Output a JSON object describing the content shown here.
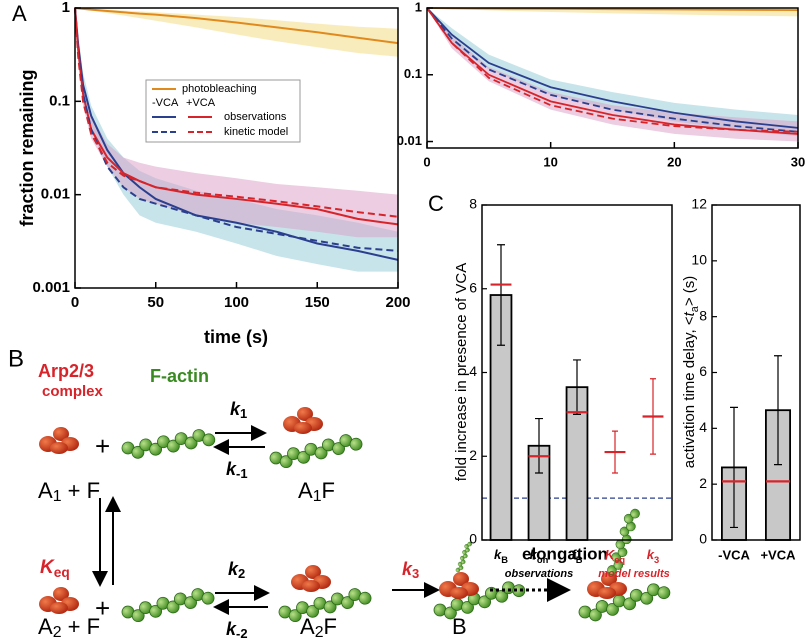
{
  "panel_labels": {
    "a": "A",
    "c": "C"
  },
  "chart_data": [
    {
      "type": "line",
      "log_y": true,
      "xlabel": "time (s)",
      "ylabel": "fraction remaining",
      "xlim": [
        0,
        200
      ],
      "xticks": [
        0,
        50,
        100,
        150,
        200
      ],
      "ylim": [
        0.001,
        1
      ],
      "yticks": [
        0.001,
        0.01,
        0.1,
        1
      ],
      "x": [
        0,
        2,
        5,
        10,
        20,
        30,
        40,
        50,
        75,
        100,
        125,
        150,
        175,
        200
      ],
      "legend_columns": [
        "-VCA",
        "+VCA"
      ],
      "series": [
        {
          "name": "photobleaching",
          "color": "#e08a1e",
          "dash": false,
          "values": [
            1,
            0.99,
            0.98,
            0.96,
            0.93,
            0.9,
            0.87,
            0.85,
            0.78,
            0.7,
            0.62,
            0.55,
            0.48,
            0.42
          ],
          "band_low": [
            1,
            0.99,
            0.97,
            0.94,
            0.88,
            0.83,
            0.78,
            0.73,
            0.62,
            0.52,
            0.44,
            0.38,
            0.33,
            0.3
          ],
          "band_high": [
            1,
            1,
            0.99,
            0.98,
            0.96,
            0.94,
            0.92,
            0.9,
            0.85,
            0.8,
            0.74,
            0.68,
            0.63,
            0.6
          ],
          "band_color": "#f3d97a"
        },
        {
          "name": "observations",
          "color": "#2b3f8f",
          "dash": false,
          "values": [
            1,
            0.4,
            0.15,
            0.07,
            0.03,
            0.017,
            0.012,
            0.009,
            0.006,
            0.005,
            0.004,
            0.003,
            0.0025,
            0.002
          ],
          "band_low": [
            1,
            0.3,
            0.1,
            0.05,
            0.02,
            0.01,
            0.006,
            0.005,
            0.004,
            0.003,
            0.0022,
            0.0018,
            0.0015,
            0.0015
          ],
          "band_high": [
            1,
            0.5,
            0.2,
            0.09,
            0.04,
            0.025,
            0.018,
            0.015,
            0.011,
            0.009,
            0.007,
            0.006,
            0.005,
            0.004
          ],
          "band_color": "#8fcad6"
        },
        {
          "name": "observations",
          "color": "#d7242a",
          "dash": false,
          "values": [
            1,
            0.35,
            0.12,
            0.05,
            0.025,
            0.017,
            0.014,
            0.012,
            0.01,
            0.009,
            0.008,
            0.007,
            0.0055,
            0.0048
          ],
          "band_low": [
            1,
            0.28,
            0.09,
            0.04,
            0.02,
            0.012,
            0.009,
            0.008,
            0.006,
            0.005,
            0.0045,
            0.004,
            0.0035,
            0.0035
          ],
          "band_high": [
            1,
            0.45,
            0.16,
            0.07,
            0.035,
            0.025,
            0.022,
            0.02,
            0.017,
            0.015,
            0.013,
            0.012,
            0.011,
            0.01
          ],
          "band_color": "#d99cc6"
        },
        {
          "name": "kinetic model",
          "color": "#2b3f8f",
          "dash": true,
          "values": [
            1,
            0.35,
            0.12,
            0.05,
            0.02,
            0.012,
            0.009,
            0.008,
            0.006,
            0.0045,
            0.0038,
            0.0032,
            0.0027,
            0.0025
          ]
        },
        {
          "name": "kinetic model",
          "color": "#d7242a",
          "dash": true,
          "values": [
            1,
            0.3,
            0.1,
            0.045,
            0.022,
            0.016,
            0.014,
            0.012,
            0.0105,
            0.0095,
            0.0085,
            0.0075,
            0.0065,
            0.0058
          ]
        }
      ]
    },
    {
      "type": "line",
      "log_y": true,
      "xlim": [
        0,
        30
      ],
      "xticks": [
        0,
        10,
        20,
        30
      ],
      "ylim": [
        0.008,
        1
      ],
      "yticks": [
        0.01,
        0.1,
        1
      ],
      "x": [
        0,
        2,
        5,
        10,
        15,
        20,
        25,
        30
      ],
      "series": [
        {
          "color": "#e08a1e",
          "dash": false,
          "values": [
            1,
            0.99,
            0.98,
            0.97,
            0.96,
            0.95,
            0.94,
            0.93
          ],
          "band_low": [
            1,
            0.96,
            0.92,
            0.87,
            0.83,
            0.8,
            0.77,
            0.75
          ],
          "band_high": [
            1,
            1,
            1,
            1,
            1,
            1,
            1,
            1
          ],
          "band_color": "#f3d97a"
        },
        {
          "color": "#2b3f8f",
          "dash": false,
          "values": [
            1,
            0.4,
            0.15,
            0.065,
            0.04,
            0.027,
            0.02,
            0.016
          ],
          "band_low": [
            1,
            0.3,
            0.12,
            0.05,
            0.03,
            0.02,
            0.015,
            0.012
          ],
          "band_high": [
            1,
            0.5,
            0.2,
            0.085,
            0.055,
            0.038,
            0.03,
            0.025
          ],
          "band_color": "#8fcad6"
        },
        {
          "color": "#d7242a",
          "dash": false,
          "values": [
            1,
            0.3,
            0.1,
            0.04,
            0.025,
            0.018,
            0.015,
            0.013
          ],
          "band_low": [
            1,
            0.25,
            0.08,
            0.03,
            0.018,
            0.013,
            0.011,
            0.01
          ],
          "band_high": [
            1,
            0.38,
            0.13,
            0.055,
            0.035,
            0.027,
            0.023,
            0.02
          ],
          "band_color": "#d99cc6"
        },
        {
          "color": "#2b3f8f",
          "dash": true,
          "values": [
            1,
            0.35,
            0.12,
            0.05,
            0.03,
            0.022,
            0.017,
            0.014
          ]
        },
        {
          "color": "#d7242a",
          "dash": true,
          "values": [
            1,
            0.3,
            0.09,
            0.035,
            0.022,
            0.017,
            0.015,
            0.014
          ]
        }
      ]
    },
    {
      "type": "bar",
      "ylabel": "fold increase in presence of VCA",
      "categories": [
        {
          "main": "k",
          "sub": "B"
        },
        {
          "main": "k",
          "sub": "on"
        },
        {
          "main": "f",
          "sub": "B"
        },
        {
          "main": "K",
          "sub": "eq"
        },
        {
          "main": "k",
          "sub": "3"
        }
      ],
      "values": [
        5.85,
        2.25,
        3.65,
        null,
        null
      ],
      "errors": [
        1.2,
        0.65,
        0.65,
        null,
        null
      ],
      "color": "#c8c8c8",
      "model_values": [
        6.1,
        2.0,
        3.05,
        2.1,
        2.95
      ],
      "model_errors": [
        null,
        null,
        null,
        0.5,
        0.9
      ],
      "model_color": "#d7242a",
      "reference_line": 1,
      "reference_color": "#2b3f8f",
      "group_labels": [
        "observations",
        "model results"
      ],
      "ylim": [
        0,
        8
      ],
      "yticks": [
        0,
        2,
        4,
        6,
        8
      ]
    },
    {
      "type": "bar",
      "ylabel": {
        "before": "activation time delay, <",
        "italic": "t",
        "sub": "a",
        "after": "> (s)"
      },
      "categories": [
        "-VCA",
        "+VCA"
      ],
      "values": [
        2.6,
        4.65
      ],
      "errors": [
        2.15,
        1.95
      ],
      "color": "#c8c8c8",
      "model_values": [
        2.1,
        2.1
      ],
      "model_color": "#d7242a",
      "ylim": [
        0,
        12
      ],
      "yticks": [
        0,
        2,
        4,
        6,
        8,
        10,
        12
      ]
    }
  ],
  "diagram": {
    "panel": "B",
    "arp_label": [
      "Arp2/3",
      "complex"
    ],
    "actin_label": "F-actin",
    "keq": {
      "main": "K",
      "sub": "eq"
    },
    "elongation": "elongation",
    "states": [
      {
        "main": "A",
        "sub": "1",
        "rest": " + F"
      },
      {
        "main": "A",
        "sub": "1",
        "rest": "F"
      },
      {
        "main": "A",
        "sub": "2",
        "rest": " + F"
      },
      {
        "main": "A",
        "sub": "2",
        "rest": "F"
      },
      {
        "main": "B"
      }
    ],
    "rates": [
      {
        "main": "k",
        "sub": "1"
      },
      {
        "main": "k",
        "sub": "-1"
      },
      {
        "main": "k",
        "sub": "2"
      },
      {
        "main": "k",
        "sub": "-2"
      },
      {
        "main": "k",
        "sub": "3"
      }
    ]
  }
}
